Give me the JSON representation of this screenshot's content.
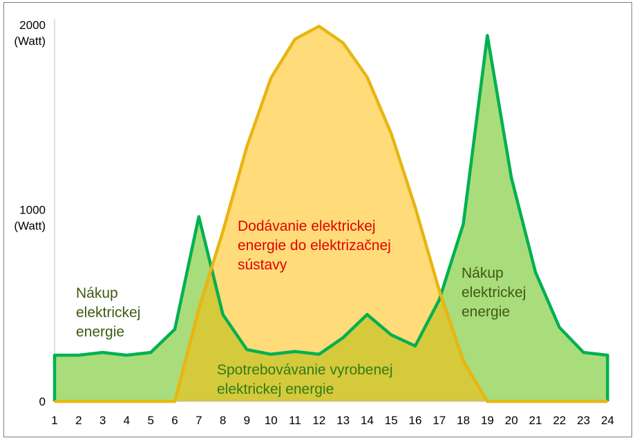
{
  "chart_data": {
    "type": "area",
    "x": [
      1,
      2,
      3,
      4,
      5,
      6,
      7,
      8,
      9,
      10,
      11,
      12,
      13,
      14,
      15,
      16,
      17,
      18,
      19,
      20,
      21,
      22,
      23,
      24
    ],
    "y_ticks": [
      {
        "value": 0,
        "lines": [
          "0"
        ]
      },
      {
        "value": 1000,
        "lines": [
          "1000",
          "(Watt)"
        ]
      },
      {
        "value": 2000,
        "lines": [
          "2000",
          "(Watt)"
        ]
      }
    ],
    "ylim": [
      0,
      2000
    ],
    "series": [
      {
        "id": "consumption",
        "values": [
          250,
          250,
          265,
          250,
          265,
          390,
          1000,
          470,
          280,
          255,
          270,
          255,
          345,
          470,
          360,
          300,
          550,
          960,
          1980,
          1210,
          700,
          400,
          265,
          250
        ],
        "color_line": "#00b050",
        "color_fill": "#a9dc7b"
      },
      {
        "id": "production",
        "values": [
          0,
          0,
          0,
          0,
          0,
          0,
          500,
          920,
          1380,
          1750,
          1960,
          2030,
          1940,
          1755,
          1450,
          1050,
          600,
          220,
          0,
          0,
          0,
          0,
          0,
          0
        ],
        "color_line": "#e8b510",
        "color_fill": "#ffdb7a"
      }
    ],
    "overlap_fill": "#d5c93c",
    "annotations": [
      {
        "id": "left-purchase",
        "lines": [
          "Nákup",
          "elektrickej",
          "energie"
        ],
        "color": "#3e5a10"
      },
      {
        "id": "right-purchase",
        "lines": [
          "Nákup",
          "elektrickej",
          "energie"
        ],
        "color": "#3e5a10"
      },
      {
        "id": "grid-supply",
        "lines": [
          "Dodávanie elektrickej",
          "energie do elektrizačnej",
          "sústavy"
        ],
        "color": "#e00000"
      },
      {
        "id": "self-consumption",
        "lines": [
          "Spotrebovávanie vyrobenej",
          "elektrickej energie"
        ],
        "color": "#2e7d16"
      }
    ],
    "grid": false,
    "legend": "none"
  }
}
